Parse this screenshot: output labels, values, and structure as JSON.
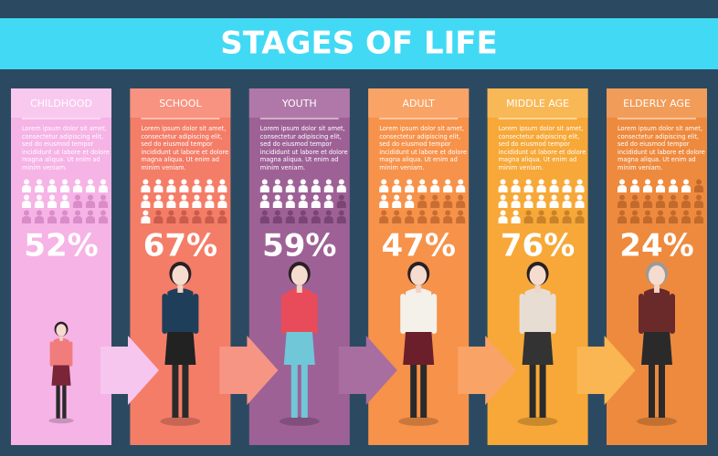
{
  "header": {
    "title": "STAGES OF LIFE"
  },
  "stages": [
    {
      "label": "CHILDHOOD",
      "text": "Lorem ipsum dolor sit amet, consectetur adipiscing elit, sed do eiusmod tempor incididunt ut labore et dolore magna aliqua. Ut enim ad minim veniam.",
      "value": 52,
      "value_label": "52%"
    },
    {
      "label": "SCHOOL",
      "text": "Lorem ipsum dolor sit amet, consectetur adipiscing elit, sed do eiusmod tempor incididunt ut labore et dolore magna aliqua. Ut enim ad minim veniam.",
      "value": 67,
      "value_label": "67%"
    },
    {
      "label": "YOUTH",
      "text": "Lorem ipsum dolor sit amet, consectetur adipiscing elit, sed do eiusmod tempor incididunt ut labore et dolore magna aliqua. Ut enim ad minim veniam.",
      "value": 59,
      "value_label": "59%"
    },
    {
      "label": "ADULT",
      "text": "Lorem ipsum dolor sit amet, consectetur adipiscing elit, sed do eiusmod tempor incididunt ut labore et dolore magna aliqua. Ut enim ad minim veniam.",
      "value": 47,
      "value_label": "47%"
    },
    {
      "label": "MIDDLE AGE",
      "text": "Lorem ipsum dolor sit amet, consectetur adipiscing elit, sed do eiusmod tempor incididunt ut labore et dolore magna aliqua. Ut enim ad minim veniam.",
      "value": 76,
      "value_label": "76%"
    },
    {
      "label": "ELDERLY AGE",
      "text": "Lorem ipsum dolor sit amet, consectetur adipiscing elit, sed do eiusmod tempor incididunt ut labore et dolore magna aliqua. Ut enim ad minim veniam.",
      "value": 24,
      "value_label": "24%"
    }
  ]
}
